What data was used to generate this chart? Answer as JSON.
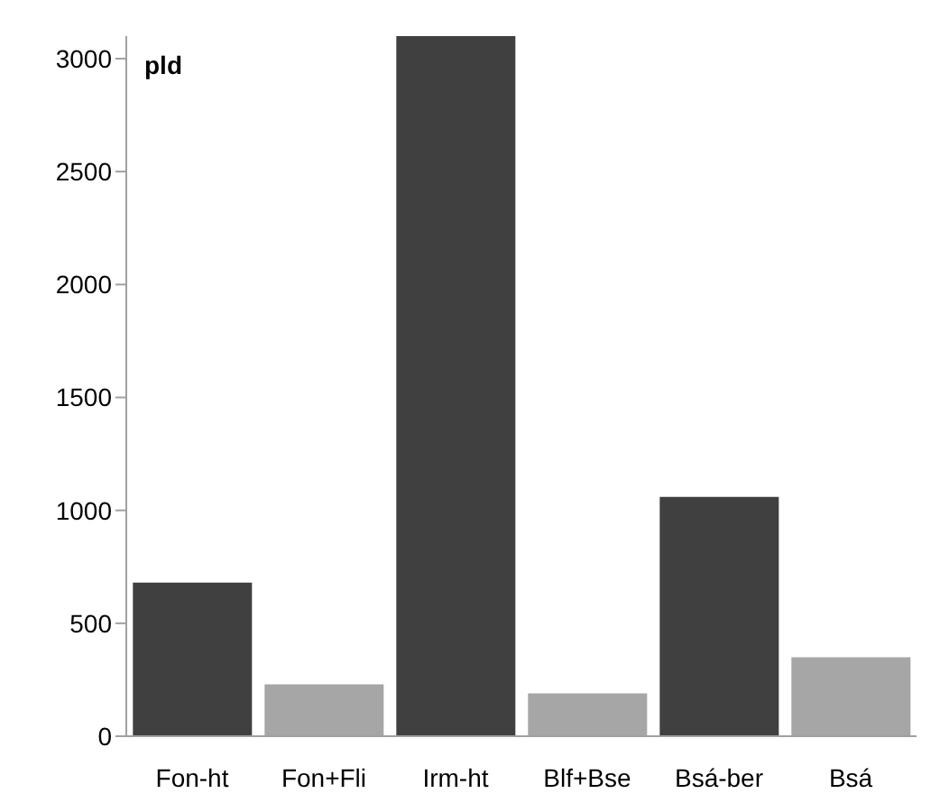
{
  "chart_data": {
    "type": "bar",
    "categories": [
      "Fon-ht",
      "Fon+Fli",
      "Irm-ht",
      "Blf+Bse",
      "Bsá-ber",
      "Bsá"
    ],
    "values": [
      680,
      230,
      3100,
      190,
      1060,
      350
    ],
    "colors": [
      "#404040",
      "#a6a6a6",
      "#404040",
      "#a6a6a6",
      "#404040",
      "#a6a6a6"
    ],
    "ylim": [
      0,
      3100
    ],
    "yticks": [
      0,
      500,
      1000,
      1500,
      2000,
      2500,
      3000
    ],
    "grid": false,
    "legend": false,
    "annotations": [
      "pld"
    ]
  }
}
